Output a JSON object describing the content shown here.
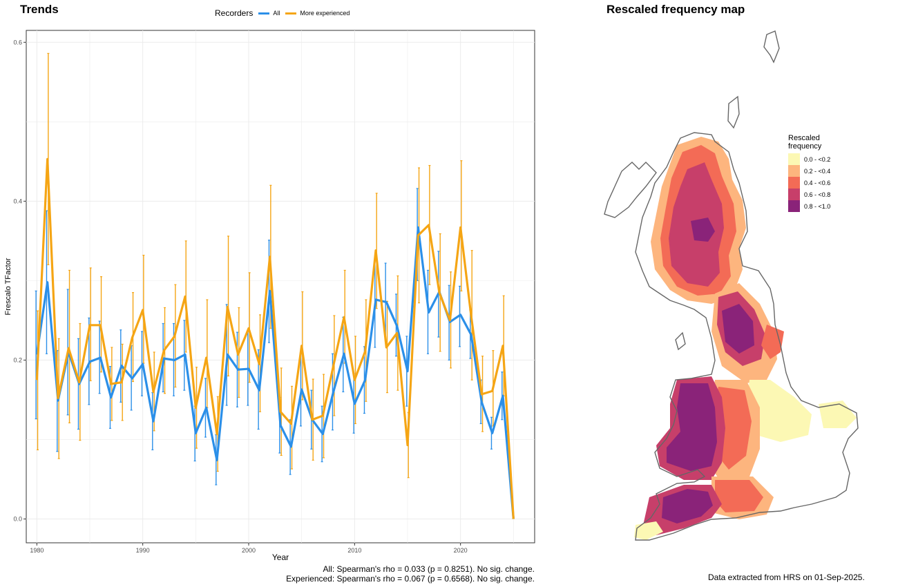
{
  "left_panel": {
    "title": "Trends",
    "legend_title": "Recorders",
    "stats_line1": "All: Spearman's rho = 0.033 (p = 0.8251). No sig. change.",
    "stats_line2": "Experienced: Spearman's rho = 0.067 (p = 0.6568). No sig. change."
  },
  "right_panel": {
    "title": "Rescaled frequency map",
    "legend_title_1": "Rescaled",
    "legend_title_2": "frequency",
    "legend_items": [
      {
        "label": "0.0 - <0.2",
        "color": "#FCF8B4"
      },
      {
        "label": "0.2 - <0.4",
        "color": "#FDB57E"
      },
      {
        "label": "0.4 - <0.6",
        "color": "#F36B56"
      },
      {
        "label": "0.6 - <0.8",
        "color": "#C73F6A"
      },
      {
        "label": "0.8 - <1.0",
        "color": "#8A2379"
      }
    ],
    "source_note": "Data extracted from HRS on 01-Sep-2025."
  },
  "chart_data": {
    "type": "line",
    "title": "Trends",
    "xlabel": "Year",
    "ylabel": "Frescalo TFactor",
    "xlim": [
      1979,
      2027
    ],
    "ylim": [
      -0.03,
      0.615
    ],
    "x_ticks": [
      1980,
      1990,
      2000,
      2010,
      2020
    ],
    "y_ticks": [
      0.0,
      0.2,
      0.4,
      0.6
    ],
    "y_tick_labels": [
      "0.0",
      "0.2",
      "0.4",
      "0.6"
    ],
    "grid": true,
    "legend_position": "top",
    "x": [
      1980,
      1981,
      1982,
      1983,
      1984,
      1985,
      1986,
      1987,
      1988,
      1989,
      1990,
      1991,
      1992,
      1993,
      1994,
      1995,
      1996,
      1997,
      1998,
      1999,
      2000,
      2001,
      2002,
      2003,
      2004,
      2005,
      2006,
      2007,
      2008,
      2009,
      2010,
      2011,
      2012,
      2013,
      2014,
      2015,
      2016,
      2017,
      2018,
      2019,
      2020,
      2021,
      2022,
      2023,
      2024,
      2025
    ],
    "series": [
      {
        "name": "All",
        "color": "#2B8FE8",
        "values": [
          0.207,
          0.298,
          0.149,
          0.21,
          0.17,
          0.198,
          0.203,
          0.153,
          0.193,
          0.177,
          0.195,
          0.123,
          0.202,
          0.2,
          0.207,
          0.108,
          0.14,
          0.074,
          0.207,
          0.188,
          0.189,
          0.162,
          0.287,
          0.118,
          0.091,
          0.163,
          0.125,
          0.107,
          0.16,
          0.208,
          0.145,
          0.175,
          0.276,
          0.273,
          0.243,
          0.186,
          0.367,
          0.26,
          0.286,
          0.248,
          0.257,
          0.232,
          0.147,
          0.108,
          0.155,
          0.0
        ],
        "err_low": [
          0.126,
          0.208,
          0.085,
          0.131,
          0.113,
          0.144,
          0.158,
          0.114,
          0.147,
          0.137,
          0.155,
          0.087,
          0.16,
          0.155,
          0.162,
          0.073,
          0.103,
          0.043,
          0.143,
          0.141,
          0.143,
          0.113,
          0.222,
          0.083,
          0.056,
          0.117,
          0.088,
          0.072,
          0.112,
          0.16,
          0.108,
          0.133,
          0.216,
          0.226,
          0.205,
          0.142,
          0.3,
          0.208,
          0.229,
          0.2,
          0.217,
          0.202,
          0.12,
          0.088,
          0.125,
          0.0
        ],
        "err_high": [
          0.287,
          0.388,
          0.212,
          0.289,
          0.227,
          0.253,
          0.249,
          0.192,
          0.238,
          0.218,
          0.236,
          0.159,
          0.246,
          0.246,
          0.25,
          0.142,
          0.177,
          0.106,
          0.27,
          0.235,
          0.236,
          0.213,
          0.351,
          0.153,
          0.125,
          0.21,
          0.162,
          0.142,
          0.208,
          0.254,
          0.183,
          0.217,
          0.325,
          0.322,
          0.283,
          0.23,
          0.416,
          0.313,
          0.337,
          0.294,
          0.293,
          0.263,
          0.175,
          0.128,
          0.185,
          0.0
        ]
      },
      {
        "name": "More experienced",
        "color": "#F5A514",
        "values": [
          0.175,
          0.453,
          0.152,
          0.215,
          0.172,
          0.244,
          0.244,
          0.17,
          0.172,
          0.228,
          0.263,
          0.16,
          0.212,
          0.23,
          0.28,
          0.14,
          0.203,
          0.107,
          0.267,
          0.207,
          0.24,
          0.195,
          0.33,
          0.135,
          0.12,
          0.218,
          0.125,
          0.13,
          0.193,
          0.254,
          0.175,
          0.211,
          0.338,
          0.216,
          0.234,
          0.093,
          0.357,
          0.37,
          0.285,
          0.25,
          0.367,
          0.256,
          0.157,
          0.161,
          0.218,
          0.0
        ],
        "err_low": [
          0.087,
          0.32,
          0.076,
          0.121,
          0.099,
          0.174,
          0.185,
          0.124,
          0.124,
          0.173,
          0.196,
          0.111,
          0.158,
          0.166,
          0.21,
          0.089,
          0.14,
          0.06,
          0.18,
          0.153,
          0.172,
          0.135,
          0.24,
          0.08,
          0.063,
          0.15,
          0.074,
          0.077,
          0.13,
          0.196,
          0.12,
          0.148,
          0.265,
          0.159,
          0.162,
          0.052,
          0.272,
          0.295,
          0.211,
          0.19,
          0.287,
          0.175,
          0.11,
          0.117,
          0.155,
          0.0
        ],
        "err_high": [
          0.262,
          0.586,
          0.227,
          0.313,
          0.246,
          0.316,
          0.305,
          0.216,
          0.22,
          0.285,
          0.332,
          0.21,
          0.266,
          0.295,
          0.35,
          0.191,
          0.276,
          0.154,
          0.356,
          0.266,
          0.31,
          0.257,
          0.42,
          0.19,
          0.167,
          0.286,
          0.176,
          0.182,
          0.256,
          0.313,
          0.23,
          0.276,
          0.41,
          0.274,
          0.306,
          0.134,
          0.442,
          0.445,
          0.359,
          0.311,
          0.451,
          0.338,
          0.205,
          0.212,
          0.281,
          0.0
        ]
      }
    ]
  }
}
